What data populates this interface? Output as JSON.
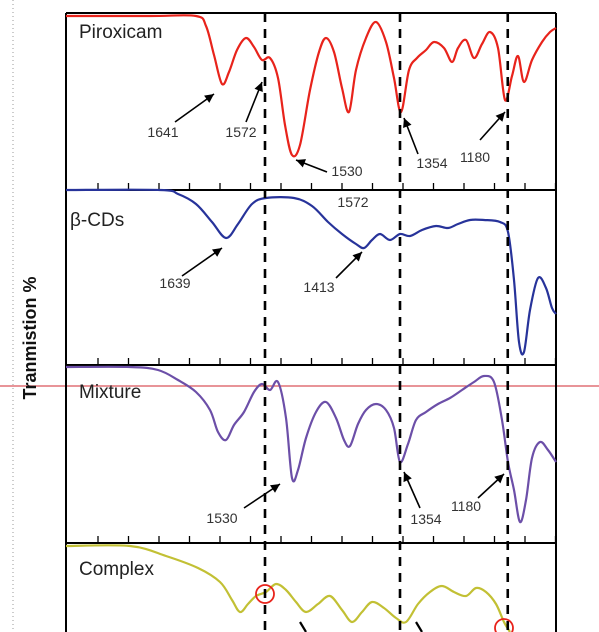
{
  "chart_data": {
    "type": "line",
    "ylabel": "Tranmistion %",
    "xlabel": "",
    "legend": "none",
    "grid": false,
    "x_ticks_shown_without_labels": true,
    "marker_lines": {
      "style": "dashed",
      "color": "#000000",
      "positions": [
        1572,
        1354,
        1180
      ]
    },
    "panels": [
      {
        "name": "Piroxicam",
        "color": "#e8231b",
        "annotations": [
          {
            "text": "1641",
            "x": 1641
          },
          {
            "text": "1572",
            "x": 1572
          },
          {
            "text": "1530",
            "x": 1530
          },
          {
            "text": "1354",
            "x": 1354
          },
          {
            "text": "1180",
            "x": 1180
          }
        ]
      },
      {
        "name": "β-CDs",
        "color": "#27339a",
        "annotations": [
          {
            "text": "1572",
            "x": 1572
          },
          {
            "text": "1639",
            "x": 1639
          },
          {
            "text": "1413",
            "x": 1413
          }
        ]
      },
      {
        "name": "Mixture",
        "color": "#6c4fa8",
        "annotations": [
          {
            "text": "1530",
            "x": 1530
          },
          {
            "text": "1354",
            "x": 1354
          },
          {
            "text": "1180",
            "x": 1180
          }
        ]
      },
      {
        "name": "Complex",
        "color": "#c2c034",
        "annotations": [],
        "highlight_circles_color": "#e8231b"
      }
    ]
  }
}
